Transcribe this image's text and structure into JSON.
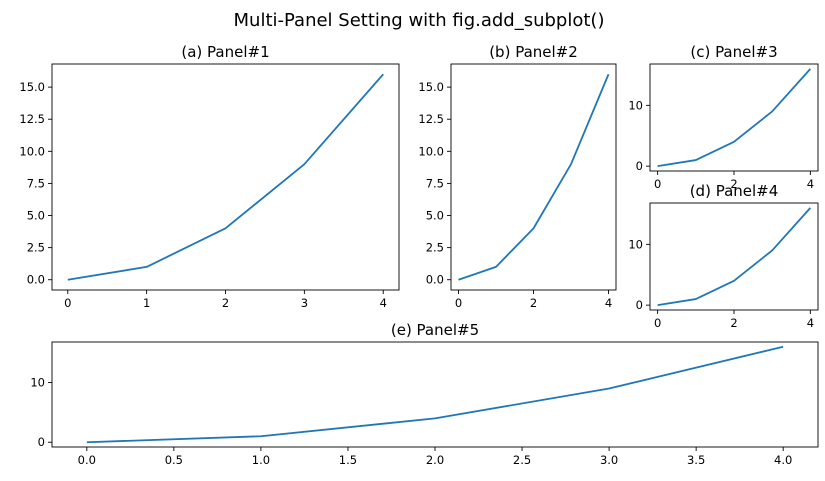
{
  "figure": {
    "title": "Multi-Panel Setting with fig.add_subplot()"
  },
  "line_color": "#1f77b4",
  "chart_data": [
    {
      "type": "line",
      "title": "(a) Panel#1",
      "x": [
        0,
        1,
        2,
        3,
        4
      ],
      "y": [
        0,
        1,
        4,
        9,
        16
      ],
      "xlim": [
        -0.2,
        4.2
      ],
      "ylim": [
        -0.8,
        16.8
      ],
      "xticks": [
        0,
        1,
        2,
        3,
        4
      ],
      "xtick_labels": [
        "0",
        "1",
        "2",
        "3",
        "4"
      ],
      "yticks": [
        0,
        2.5,
        5,
        7.5,
        10,
        12.5,
        15
      ],
      "ytick_labels": [
        "0.0",
        "2.5",
        "5.0",
        "7.5",
        "10.0",
        "12.5",
        "15.0"
      ],
      "grid": false
    },
    {
      "type": "line",
      "title": "(b) Panel#2",
      "x": [
        0,
        1,
        2,
        3,
        4
      ],
      "y": [
        0,
        1,
        4,
        9,
        16
      ],
      "xlim": [
        -0.2,
        4.2
      ],
      "ylim": [
        -0.8,
        16.8
      ],
      "xticks": [
        0,
        2,
        4
      ],
      "xtick_labels": [
        "0",
        "2",
        "4"
      ],
      "yticks": [
        0,
        2.5,
        5,
        7.5,
        10,
        12.5,
        15
      ],
      "ytick_labels": [
        "0.0",
        "2.5",
        "5.0",
        "7.5",
        "10.0",
        "12.5",
        "15.0"
      ],
      "grid": false
    },
    {
      "type": "line",
      "title": "(c) Panel#3",
      "x": [
        0,
        1,
        2,
        3,
        4
      ],
      "y": [
        0,
        1,
        4,
        9,
        16
      ],
      "xlim": [
        -0.2,
        4.2
      ],
      "ylim": [
        -0.8,
        16.8
      ],
      "xticks": [
        0,
        2,
        4
      ],
      "xtick_labels": [
        "0",
        "2",
        "4"
      ],
      "yticks": [
        0,
        10
      ],
      "ytick_labels": [
        "0",
        "10"
      ],
      "grid": false
    },
    {
      "type": "line",
      "title": "(d) Panel#4",
      "x": [
        0,
        1,
        2,
        3,
        4
      ],
      "y": [
        0,
        1,
        4,
        9,
        16
      ],
      "xlim": [
        -0.2,
        4.2
      ],
      "ylim": [
        -0.8,
        16.8
      ],
      "xticks": [
        0,
        2,
        4
      ],
      "xtick_labels": [
        "0",
        "2",
        "4"
      ],
      "yticks": [
        0,
        10
      ],
      "ytick_labels": [
        "0",
        "10"
      ],
      "grid": false
    },
    {
      "type": "line",
      "title": "(e) Panel#5",
      "x": [
        0,
        1,
        2,
        3,
        4
      ],
      "y": [
        0,
        1,
        4,
        9,
        16
      ],
      "xlim": [
        -0.2,
        4.2
      ],
      "ylim": [
        -0.8,
        16.8
      ],
      "xticks": [
        0,
        0.5,
        1,
        1.5,
        2,
        2.5,
        3,
        3.5,
        4
      ],
      "xtick_labels": [
        "0.0",
        "0.5",
        "1.0",
        "1.5",
        "2.0",
        "2.5",
        "3.0",
        "3.5",
        "4.0"
      ],
      "yticks": [
        0,
        10
      ],
      "ytick_labels": [
        "0",
        "10"
      ],
      "grid": false
    }
  ]
}
